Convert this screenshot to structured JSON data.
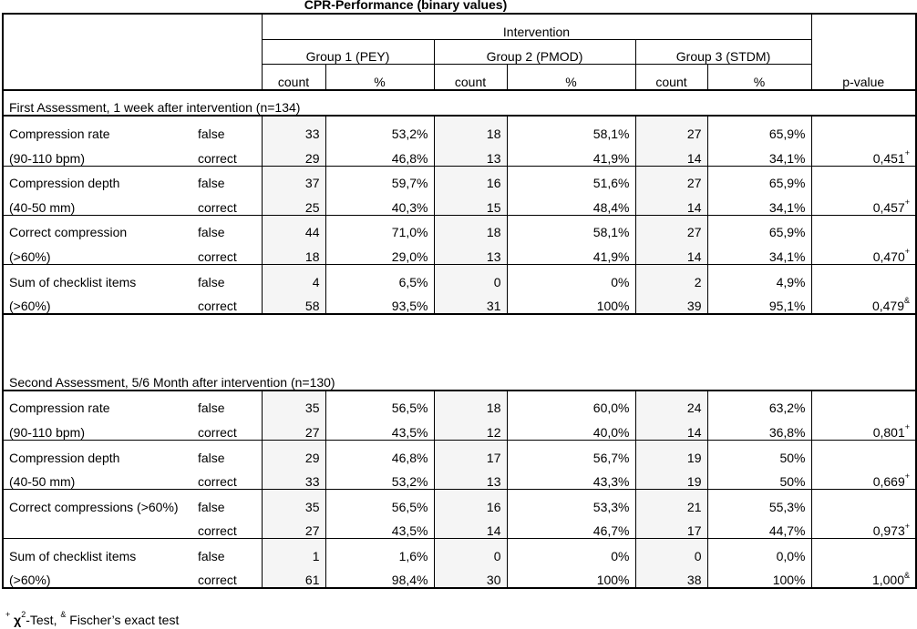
{
  "title": "CPR-Performance (binary values)",
  "header": {
    "intervention": "Intervention",
    "groups": [
      "Group 1 (PEY)",
      "Group 2 (PMOD)",
      "Group 3 (STDM)"
    ],
    "count": "count",
    "percent": "%",
    "pvalue": "p-value"
  },
  "assessments": [
    {
      "title": "First Assessment, 1 week after intervention  (n=134)",
      "blocks": [
        {
          "label1": "Compression rate",
          "label2": "(90-110 bpm)",
          "rows": [
            {
              "outcome": "false",
              "values": [
                "33",
                "53,2%",
                "18",
                "58,1%",
                "27",
                "65,9%"
              ]
            },
            {
              "outcome": "correct",
              "values": [
                "29",
                "46,8%",
                "13",
                "41,9%",
                "14",
                "34,1%"
              ]
            }
          ],
          "pvalue": "0,451",
          "mark": "+"
        },
        {
          "label1": "Compression depth",
          "label2": "(40-50 mm)",
          "rows": [
            {
              "outcome": "false",
              "values": [
                "37",
                "59,7%",
                "16",
                "51,6%",
                "27",
                "65,9%"
              ]
            },
            {
              "outcome": "correct",
              "values": [
                "25",
                "40,3%",
                "15",
                "48,4%",
                "14",
                "34,1%"
              ]
            }
          ],
          "pvalue": "0,457",
          "mark": "+"
        },
        {
          "label1": "Correct compression",
          "label2": "(>60%)",
          "rows": [
            {
              "outcome": "false",
              "values": [
                "44",
                "71,0%",
                "18",
                "58,1%",
                "27",
                "65,9%"
              ]
            },
            {
              "outcome": "correct",
              "values": [
                "18",
                "29,0%",
                "13",
                "41,9%",
                "14",
                "34,1%"
              ]
            }
          ],
          "pvalue": "0,470",
          "mark": "+"
        },
        {
          "label1": "Sum of checklist items",
          "label2": "(>60%)",
          "rows": [
            {
              "outcome": "false",
              "values": [
                "4",
                "6,5%",
                "0",
                "0%",
                "2",
                "4,9%"
              ]
            },
            {
              "outcome": "correct",
              "values": [
                "58",
                "93,5%",
                "31",
                "100%",
                "39",
                "95,1%"
              ]
            }
          ],
          "pvalue": "0,479",
          "mark": "&"
        }
      ]
    },
    {
      "title": "Second Assessment, 5/6 Month after intervention (n=130)",
      "blocks": [
        {
          "label1": "Compression rate",
          "label2": "(90-110 bpm)",
          "rows": [
            {
              "outcome": "false",
              "values": [
                "35",
                "56,5%",
                "18",
                "60,0%",
                "24",
                "63,2%"
              ]
            },
            {
              "outcome": "correct",
              "values": [
                "27",
                "43,5%",
                "12",
                "40,0%",
                "14",
                "36,8%"
              ]
            }
          ],
          "pvalue": "0,801",
          "mark": "+"
        },
        {
          "label1": "Compression depth",
          "label2": "(40-50 mm)",
          "rows": [
            {
              "outcome": "false",
              "values": [
                "29",
                "46,8%",
                "17",
                "56,7%",
                "19",
                "50%"
              ]
            },
            {
              "outcome": "correct",
              "values": [
                "33",
                "53,2%",
                "13",
                "43,3%",
                "19",
                "50%"
              ]
            }
          ],
          "pvalue": "0,669",
          "mark": "+"
        },
        {
          "label1": "Correct compressions (>60%)",
          "label2": "",
          "rows": [
            {
              "outcome": "false",
              "values": [
                "35",
                "56,5%",
                "16",
                "53,3%",
                "21",
                "55,3%"
              ]
            },
            {
              "outcome": "correct",
              "values": [
                "27",
                "43,5%",
                "14",
                "46,7%",
                "17",
                "44,7%"
              ]
            }
          ],
          "pvalue": "0,973",
          "mark": "+"
        },
        {
          "label1": "Sum of checklist items",
          "label2": "(>60%)",
          "rows": [
            {
              "outcome": "false",
              "values": [
                "1",
                "1,6%",
                "0",
                "0%",
                "0",
                "0,0%"
              ]
            },
            {
              "outcome": "correct",
              "values": [
                "61",
                "98,4%",
                "30",
                "100%",
                "38",
                "100%"
              ]
            }
          ],
          "pvalue": "1,000",
          "mark": "&"
        }
      ]
    }
  ],
  "footnote": {
    "plus": "+",
    "chi": "χ",
    "two": "2",
    "chi_text": "-Test, ",
    "amp": "&",
    "fischer": " Fischer’s exact test"
  }
}
